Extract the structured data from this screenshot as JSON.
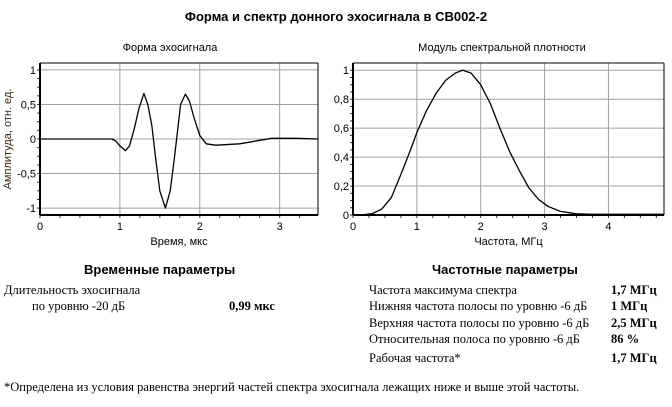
{
  "title": "Форма и спектр донного эхосигнала в СВ002-2",
  "chart_data": [
    {
      "type": "line",
      "title": "Форма эхосигнала",
      "xlabel": "Время, мкс",
      "ylabel": "Амплитуда, отн. ед.",
      "xlim": [
        0,
        3.48
      ],
      "ylim": [
        -1.1,
        1.1
      ],
      "xticks": [
        0,
        1,
        2,
        3
      ],
      "xtick_labels": [
        "0",
        "1",
        "2",
        "3"
      ],
      "yticks": [
        1,
        0.5,
        0,
        -0.5,
        -1
      ],
      "ytick_labels": [
        "1",
        "0,5",
        "0",
        "-0,5",
        "-1"
      ],
      "grid": true,
      "x": [
        0,
        0.9,
        0.95,
        1.0,
        1.07,
        1.12,
        1.18,
        1.24,
        1.3,
        1.35,
        1.4,
        1.45,
        1.5,
        1.57,
        1.63,
        1.68,
        1.72,
        1.76,
        1.82,
        1.87,
        1.93,
        2.0,
        2.08,
        2.2,
        2.5,
        2.9,
        3.2,
        3.48
      ],
      "y": [
        0,
        0,
        -0.03,
        -0.1,
        -0.17,
        -0.1,
        0.15,
        0.45,
        0.66,
        0.5,
        0.2,
        -0.3,
        -0.75,
        -1.0,
        -0.75,
        -0.3,
        0.1,
        0.5,
        0.65,
        0.55,
        0.3,
        0.05,
        -0.07,
        -0.09,
        -0.07,
        0.01,
        0.01,
        0
      ],
      "color": "#000000"
    },
    {
      "type": "line",
      "title": "Модуль спектральной плотности",
      "xlabel": "Частота, МГц",
      "ylabel": "",
      "xlim": [
        0,
        4.87
      ],
      "ylim": [
        0,
        1.05
      ],
      "xticks": [
        0,
        1,
        2,
        3,
        4
      ],
      "xtick_labels": [
        "0",
        "1",
        "2",
        "3",
        "4"
      ],
      "yticks": [
        0,
        0.2,
        0.4,
        0.6,
        0.8,
        1
      ],
      "ytick_labels": [
        "0",
        "0,2",
        "0,4",
        "0,6",
        "0,8",
        "1"
      ],
      "grid": true,
      "x": [
        0.13,
        0.3,
        0.45,
        0.6,
        0.75,
        0.9,
        1.0,
        1.15,
        1.3,
        1.45,
        1.6,
        1.72,
        1.85,
        2.0,
        2.15,
        2.3,
        2.45,
        2.6,
        2.75,
        2.9,
        3.05,
        3.25,
        3.5,
        3.75,
        4.87
      ],
      "y": [
        0,
        0.01,
        0.04,
        0.12,
        0.28,
        0.45,
        0.57,
        0.72,
        0.84,
        0.93,
        0.98,
        1.0,
        0.98,
        0.9,
        0.77,
        0.6,
        0.44,
        0.31,
        0.19,
        0.11,
        0.06,
        0.025,
        0.008,
        0.005,
        0.005
      ],
      "color": "#000000"
    }
  ],
  "time_params": {
    "heading": "Временные параметры",
    "label1": "Длительность эхосигнала",
    "label2": "по уровню -20 дБ",
    "value": "0,99 мкс"
  },
  "freq_params": {
    "heading": "Частотные параметры",
    "rows": [
      {
        "label": "Частота максимума спектра",
        "value": "1,7 МГц"
      },
      {
        "label": "Нижняя частота полосы по уровню -6 дБ",
        "value": "1 МГц"
      },
      {
        "label": "Верхняя частота полосы по уровню -6 дБ",
        "value": "2,5 МГц"
      },
      {
        "label": "Относительная полоса по уровню  -6 дБ",
        "value": "86 %"
      },
      {
        "label": "Рабочая частота*",
        "value": "1,7 МГц"
      }
    ]
  },
  "footnote": "*Определена из условия равенства энергий частей спектра эхосигнала лежащих ниже и выше этой частоты."
}
